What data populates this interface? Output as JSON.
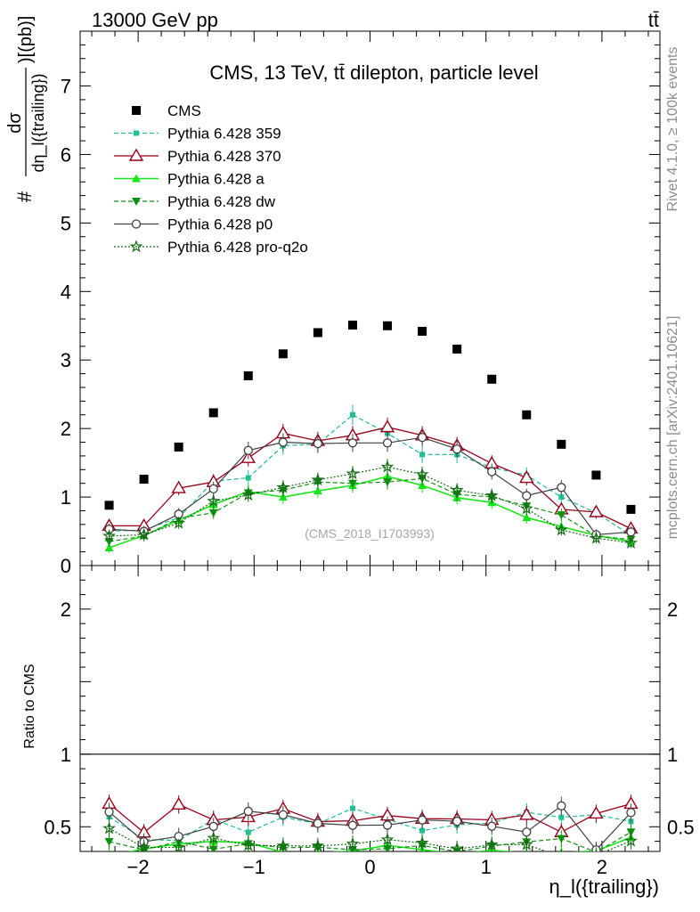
{
  "header": {
    "left": "13000 GeV pp",
    "right": "tt̄"
  },
  "side_text": {
    "rivet": "Rivet 4.1.0, ≥ 100k events",
    "mcplots": "mcplots.cern.ch [arXiv:2401.10621]"
  },
  "analysis_label": "(CMS_2018_I1703993)",
  "colors": {
    "cms": "#000000",
    "p359": "#1fbf8f",
    "p370": "#99001a",
    "pa": "#19e619",
    "pdw": "#0f8f0f",
    "pp0": "#404040",
    "pq2o": "#156b15"
  },
  "chart_data": [
    {
      "type": "scatter",
      "title": "CMS, 13 TeV, tt̄ dilepton, particle level",
      "ylabel_num": "dσ",
      "ylabel_den": "dη_l({trailing})",
      "ylabel_prefix": "#",
      "ylabel_suffix": ")[(pb)]",
      "xlabel": "η_l({trailing})",
      "xlim": [
        -2.5,
        2.5
      ],
      "ylim": [
        0,
        7.8
      ],
      "x_ticks": [
        -2,
        -1,
        0,
        1,
        2
      ],
      "x_tick_labels": [
        "−2",
        "−1",
        "0",
        "1",
        "2"
      ],
      "y_ticks": [
        0,
        1,
        2,
        3,
        4,
        5,
        6,
        7
      ],
      "y_tick_labels": [
        "0",
        "1",
        "2",
        "3",
        "4",
        "5",
        "6",
        "7"
      ],
      "x": [
        -2.25,
        -1.95,
        -1.65,
        -1.35,
        -1.05,
        -0.75,
        -0.45,
        -0.15,
        0.15,
        0.45,
        0.75,
        1.05,
        1.35,
        1.65,
        1.95,
        2.25
      ],
      "series": [
        {
          "name": "CMS",
          "key": "cms",
          "values": [
            0.88,
            1.26,
            1.73,
            2.23,
            2.77,
            3.09,
            3.4,
            3.51,
            3.5,
            3.42,
            3.16,
            2.72,
            2.2,
            1.77,
            1.32,
            0.82
          ]
        },
        {
          "name": "Pythia 6.428 359",
          "key": "p359",
          "values": [
            0.5,
            0.52,
            0.7,
            1.23,
            1.28,
            1.75,
            1.77,
            2.2,
            1.93,
            1.62,
            1.62,
            1.43,
            1.32,
            1.0,
            0.77,
            0.44
          ]
        },
        {
          "name": "Pythia 6.428 370",
          "key": "p370",
          "values": [
            0.58,
            0.58,
            1.13,
            1.22,
            1.57,
            1.93,
            1.82,
            1.9,
            2.02,
            1.9,
            1.75,
            1.49,
            1.28,
            0.82,
            0.78,
            0.54
          ]
        },
        {
          "name": "Pythia 6.428 a",
          "key": "pa",
          "values": [
            0.26,
            0.44,
            0.66,
            0.89,
            1.08,
            1.0,
            1.09,
            1.17,
            1.3,
            1.17,
            0.99,
            0.92,
            0.7,
            0.57,
            0.44,
            0.35
          ]
        },
        {
          "name": "Pythia 6.428 dw",
          "key": "pdw",
          "values": [
            0.35,
            0.43,
            0.69,
            0.77,
            1.06,
            1.1,
            1.22,
            1.2,
            1.22,
            1.27,
            1.04,
            1.0,
            0.87,
            0.74,
            0.43,
            0.38
          ]
        },
        {
          "name": "Pythia 6.428 p0",
          "key": "pp0",
          "values": [
            0.53,
            0.5,
            0.75,
            1.12,
            1.68,
            1.8,
            1.78,
            1.79,
            1.79,
            1.87,
            1.7,
            1.37,
            1.02,
            1.14,
            0.45,
            0.49
          ]
        },
        {
          "name": "Pythia 6.428 pro-q2o",
          "key": "pq2o",
          "values": [
            0.43,
            0.45,
            0.62,
            0.94,
            1.03,
            1.14,
            1.25,
            1.34,
            1.44,
            1.33,
            1.1,
            1.02,
            0.83,
            0.52,
            0.4,
            0.33
          ]
        }
      ]
    },
    {
      "type": "line",
      "ylabel": "Ratio to CMS",
      "xlim": [
        -2.5,
        2.5
      ],
      "ylim": [
        0.33,
        2.3
      ],
      "y_ticks": [
        0.5,
        1,
        2
      ],
      "y_tick_labels": [
        "0.5",
        "1",
        "2"
      ],
      "reference": 1
    }
  ],
  "legend": [
    {
      "label": "CMS",
      "key": "cms"
    },
    {
      "label": "Pythia 6.428 359",
      "key": "p359"
    },
    {
      "label": "Pythia 6.428 370",
      "key": "p370"
    },
    {
      "label": "Pythia 6.428 a",
      "key": "pa"
    },
    {
      "label": "Pythia 6.428 dw",
      "key": "pdw"
    },
    {
      "label": "Pythia 6.428 p0",
      "key": "pp0"
    },
    {
      "label": "Pythia 6.428 pro-q2o",
      "key": "pq2o"
    }
  ]
}
